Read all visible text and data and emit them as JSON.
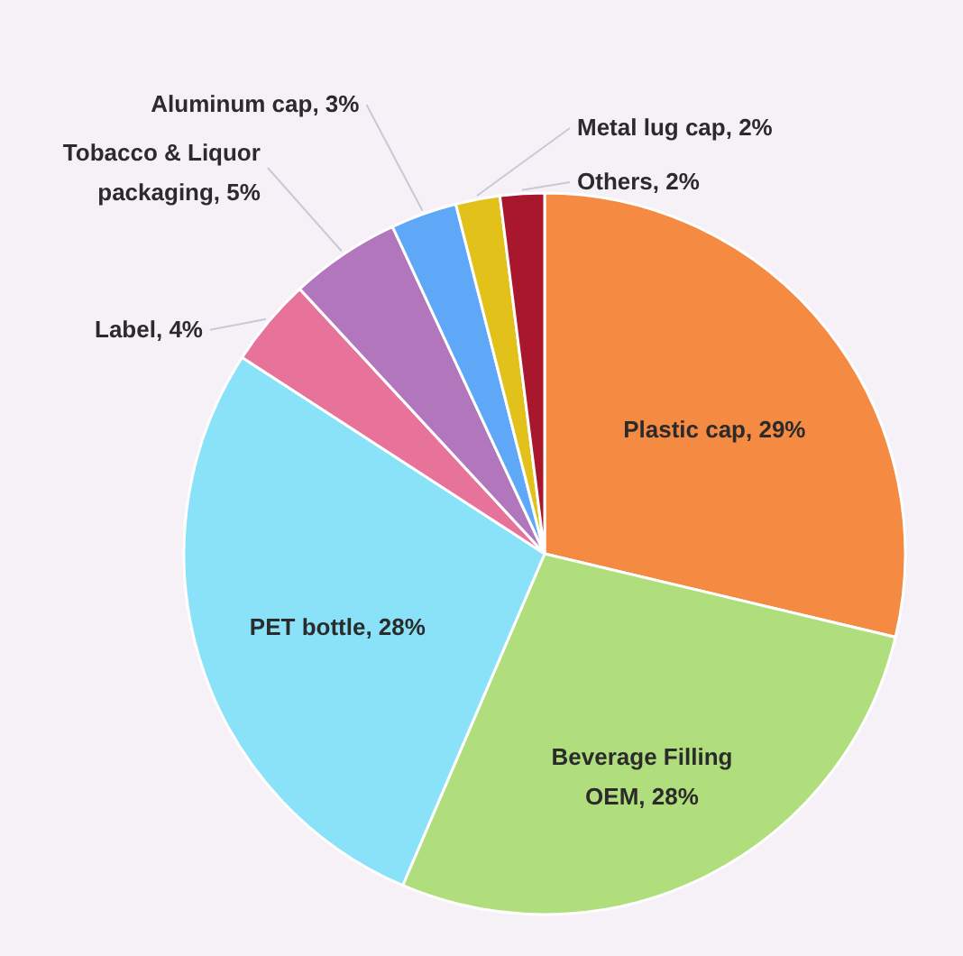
{
  "chart_data": {
    "type": "pie",
    "categories": [
      "Plastic cap",
      "Beverage Filling OEM",
      "PET bottle",
      "Label",
      "Tobacco & Liquor packaging",
      "Aluminum cap",
      "Metal lug cap",
      "Others"
    ],
    "values": [
      29,
      28,
      28,
      4,
      5,
      3,
      2,
      2
    ],
    "colors": [
      "#f58a42",
      "#b1de7c",
      "#8ae2f8",
      "#e8739a",
      "#b276bd",
      "#5ea8f7",
      "#e2c21a",
      "#a8172b"
    ],
    "value_labels": [
      "29%",
      "28%",
      "28%",
      "4%",
      "5%",
      "3%",
      "2%",
      "2%"
    ]
  }
}
